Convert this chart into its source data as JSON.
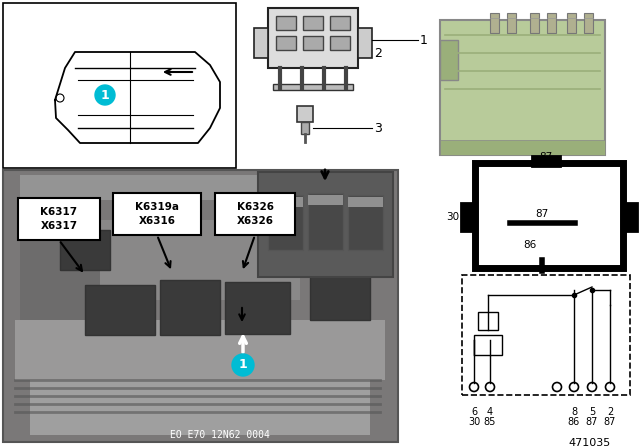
{
  "bg_color": "#ffffff",
  "label1_text": "K6317\nX6317",
  "label2_text": "K6319a\nX6316",
  "label3_text": "K6326\nX6326",
  "callout_color": "#00bcd4",
  "footer_text": "EO E70 12N62 0004",
  "diagram_number": "471035",
  "relay_green": "#b8cb9a",
  "relay_green_dark": "#9aaf7a",
  "photo_gray": "#8a8a8a",
  "photo_dark": "#5a5a5a",
  "inset_gray": "#6a6a6a"
}
